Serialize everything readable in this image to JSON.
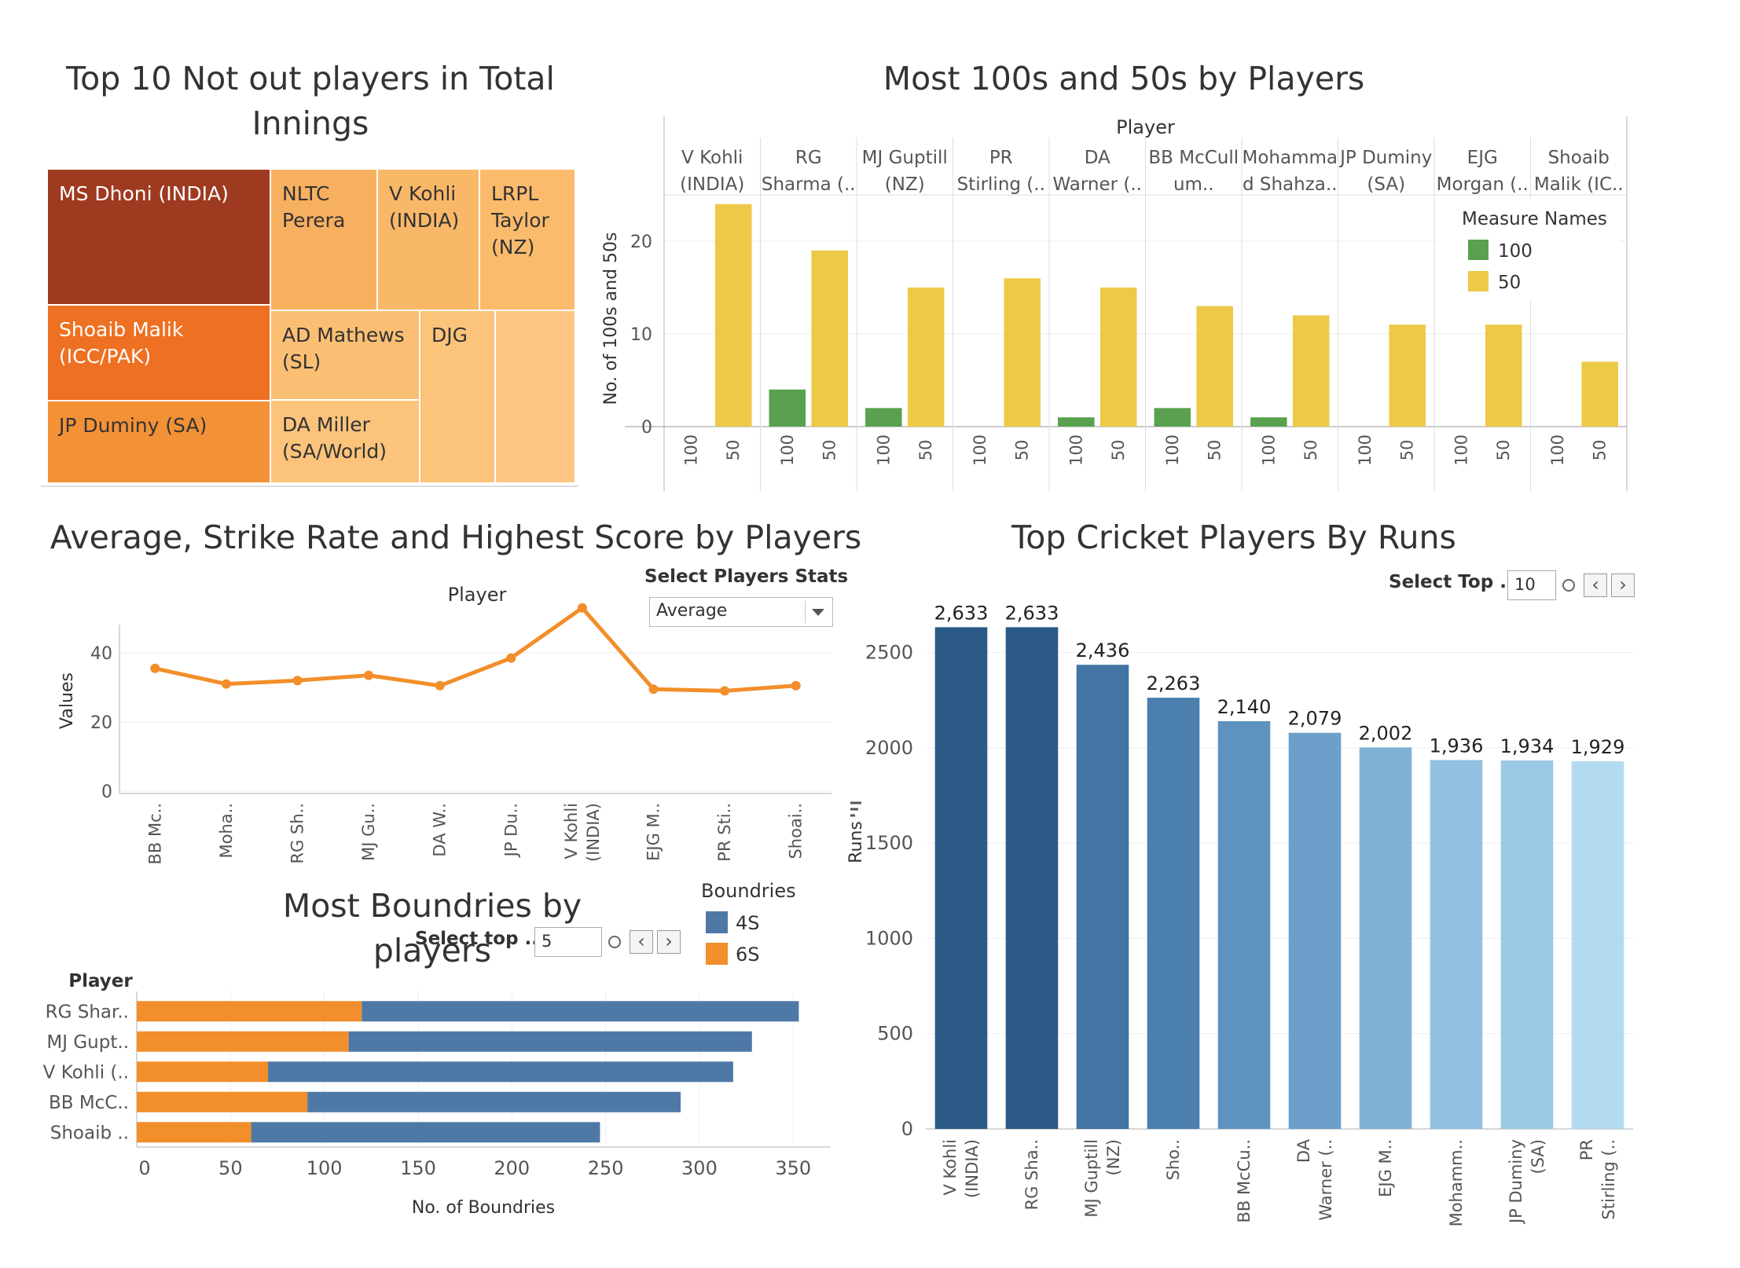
{
  "treemap": {
    "title": "Top 10 Not out players in Total Innings",
    "cells": [
      {
        "label": "MS Dhoni (INDIA)",
        "color": "#9e3a20",
        "text_color": "#ffffff"
      },
      {
        "label": "NLTC\nPerera",
        "color": "#f7b05f",
        "text_color": "#333333"
      },
      {
        "label": "V Kohli\n(INDIA)",
        "color": "#f9b868",
        "text_color": "#333333"
      },
      {
        "label": "LRPL\nTaylor\n(NZ)",
        "color": "#fbbb6d",
        "text_color": "#333333"
      },
      {
        "label": "Shoaib Malik\n(ICC/PAK)",
        "color": "#ee7022",
        "text_color": "#ffffff"
      },
      {
        "label": "AD Mathews\n(SL)",
        "color": "#fbbf74",
        "text_color": "#333333"
      },
      {
        "label": "DJG",
        "color": "#fcc37b",
        "text_color": "#333333"
      },
      {
        "label": "",
        "color": "#fdc684",
        "text_color": "#333333"
      },
      {
        "label": "JP Duminy (SA)",
        "color": "#f39136",
        "text_color": "#333333"
      },
      {
        "label": "DA Miller\n(SA/World)",
        "color": "#fcc37b",
        "text_color": "#333333"
      }
    ]
  },
  "centuries_chart": {
    "title": "Most 100s and 50s by Players",
    "header": "Player",
    "ylabel": "No. of 100s and 50s",
    "legend_title": "Measure Names",
    "chart_data": {
      "type": "bar",
      "categories": [
        "V Kohli\n(INDIA)",
        "RG\nSharma (..",
        "MJ Guptill\n(NZ)",
        "PR\nStirling (..",
        "DA\nWarner (..",
        "BB McCull\num..",
        "Mohamma\nd Shahza..",
        "JP Duminy\n(SA)",
        "EJG\nMorgan (..",
        "Shoaib\nMalik (IC.."
      ],
      "sub_categories": [
        "100",
        "50"
      ],
      "series": [
        {
          "name": "100",
          "color": "#59a14f",
          "values": [
            0,
            4,
            2,
            0,
            1,
            2,
            1,
            0,
            0,
            0
          ]
        },
        {
          "name": "50",
          "color": "#edc948",
          "values": [
            24,
            19,
            15,
            16,
            15,
            13,
            12,
            11,
            11,
            7
          ]
        }
      ],
      "ylim": [
        0,
        25
      ],
      "yticks": [
        "0",
        "10",
        "20"
      ],
      "legend": "top-right"
    }
  },
  "avg_chart": {
    "title": "Average, Strike Rate and Highest Score by Players",
    "header": "Player",
    "ylabel": "Values",
    "control_label": "Select Players Stats",
    "dropdown_value": "Average",
    "chart_data": {
      "type": "line",
      "categories": [
        "BB Mc..",
        "Moha..",
        "RG Sh..",
        "MJ Gu..",
        "DA W..",
        "JP Du..",
        "V Kohli\n(INDIA)",
        "EJG M..",
        "PR Sti..",
        "Shoai.."
      ],
      "values": [
        35.5,
        31,
        32,
        33.5,
        30.5,
        38.5,
        53,
        29.5,
        29,
        30.5
      ],
      "ylim": [
        0,
        55
      ],
      "yticks": [
        "0",
        "20",
        "40"
      ],
      "color": "#f28e2b"
    }
  },
  "runs_chart": {
    "title": "Top Cricket Players By Runs",
    "ylabel": "Runs",
    "control_label": "Select Top ..",
    "control_value": "10",
    "chart_data": {
      "type": "bar",
      "categories": [
        "V Kohli\n(INDIA)",
        "RG Sha..",
        "MJ Guptill\n(NZ)",
        "Sho..",
        "BB McCu..",
        "DA\nWarner (..",
        "EJG M..",
        "Mohamm..",
        "JP Duminy\n(SA)",
        "PR\nStirling (.."
      ],
      "values": [
        2633,
        2633,
        2436,
        2263,
        2140,
        2079,
        2002,
        1936,
        1934,
        1929
      ],
      "labels": [
        "2,633",
        "2,633",
        "2,436",
        "2,263",
        "2,140",
        "2,079",
        "2,002",
        "1,936",
        "1,934",
        "1,929"
      ],
      "colors": [
        "#2b5a86",
        "#2b5a86",
        "#4275a3",
        "#4b7fae",
        "#5f93bf",
        "#6c9fc9",
        "#7fb0d6",
        "#92c0e0",
        "#9bc8e5",
        "#b3dbef"
      ],
      "ylim": [
        0,
        2750
      ],
      "yticks": [
        "0",
        "500",
        "1000",
        "1500",
        "2000",
        "2500"
      ]
    }
  },
  "boundaries_chart": {
    "title": "Most Boundries by players",
    "header": "Player",
    "xlabel": "No. of  Boundries",
    "control_label": "Select top ..",
    "control_value": "5",
    "legend_title": "Boundries",
    "chart_data": {
      "type": "bar",
      "orientation": "horizontal",
      "stacked": true,
      "categories": [
        "RG Shar..",
        "MJ Gupt..",
        "V Kohli (..",
        "BB McC..",
        "Shoaib .."
      ],
      "series": [
        {
          "name": "6S",
          "color": "#f28e2b",
          "values": [
            120,
            113,
            70,
            91,
            61
          ]
        },
        {
          "name": "4S",
          "color": "#4e79a7",
          "values": [
            233,
            215,
            248,
            199,
            186
          ]
        }
      ],
      "legend_order": [
        "4S",
        "6S"
      ],
      "xlim": [
        0,
        370
      ],
      "xticks": [
        "0",
        "50",
        "100",
        "150",
        "200",
        "250",
        "300",
        "350"
      ]
    }
  }
}
